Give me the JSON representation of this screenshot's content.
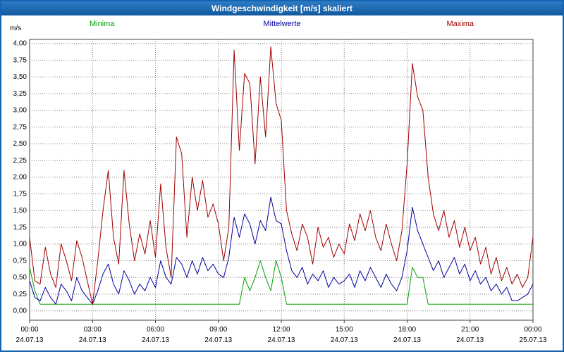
{
  "window": {
    "title": "Windgeschwindigkeit [m/s] skaliert"
  },
  "colors": {
    "window_border": "#1464b4",
    "titlebar_top": "#2e7cc4",
    "titlebar_bottom": "#11599e",
    "grid": "#787878",
    "axis": "#404040",
    "minima": "#00a000",
    "mittelwerte": "#0000a0",
    "maxima": "#a00000"
  },
  "chart_data": {
    "type": "line",
    "title": "Windgeschwindigkeit [m/s] skaliert",
    "ylabel": "m/s",
    "xlabel": "",
    "ylim": [
      0,
      4
    ],
    "ytick_step": 0.25,
    "y_tick_labels": [
      "4,00",
      "3,75",
      "3,50",
      "3,25",
      "3,00",
      "2,75",
      "2,50",
      "2,25",
      "2,00",
      "1,75",
      "1,50",
      "1,25",
      "1,00",
      "0,75",
      "0,50",
      "0,25",
      "0,00"
    ],
    "x_hours_range": [
      0,
      24
    ],
    "x_tick_hours": [
      0,
      3,
      6,
      9,
      12,
      15,
      18,
      21,
      24
    ],
    "x_tick_times": [
      "00:00",
      "03:00",
      "06:00",
      "09:00",
      "12:00",
      "15:00",
      "18:00",
      "21:00",
      "00:00"
    ],
    "x_tick_dates": [
      "24.07.13",
      "24.07.13",
      "24.07.13",
      "24.07.13",
      "24.07.13",
      "24.07.13",
      "24.07.13",
      "24.07.13",
      "25.07.13"
    ],
    "grid": true,
    "legend_position": "top",
    "sample_interval_minutes": 15,
    "series": [
      {
        "name": "Minima",
        "color": "#00a000",
        "values": [
          0.65,
          0.3,
          0.1,
          0.1,
          0.1,
          0.1,
          0.1,
          0.1,
          0.1,
          0.1,
          0.1,
          0.1,
          0.1,
          0.1,
          0.1,
          0.1,
          0.1,
          0.1,
          0.1,
          0.1,
          0.1,
          0.1,
          0.1,
          0.1,
          0.1,
          0.1,
          0.1,
          0.1,
          0.1,
          0.1,
          0.1,
          0.1,
          0.1,
          0.1,
          0.1,
          0.1,
          0.1,
          0.1,
          0.1,
          0.1,
          0.1,
          0.5,
          0.3,
          0.5,
          0.75,
          0.5,
          0.3,
          0.75,
          0.5,
          0.1,
          0.1,
          0.1,
          0.1,
          0.1,
          0.1,
          0.1,
          0.1,
          0.1,
          0.1,
          0.1,
          0.1,
          0.1,
          0.1,
          0.1,
          0.1,
          0.1,
          0.1,
          0.1,
          0.1,
          0.1,
          0.1,
          0.1,
          0.1,
          0.65,
          0.5,
          0.5,
          0.1,
          0.1,
          0.1,
          0.1,
          0.1,
          0.1,
          0.1,
          0.1,
          0.1,
          0.1,
          0.1,
          0.1,
          0.1,
          0.1,
          0.1,
          0.1,
          0.1,
          0.1,
          0.1,
          0.1,
          0.1
        ]
      },
      {
        "name": "Mittelwerte",
        "color": "#0000a0",
        "values": [
          0.45,
          0.2,
          0.15,
          0.35,
          0.2,
          0.1,
          0.4,
          0.3,
          0.15,
          0.5,
          0.3,
          0.2,
          0.1,
          0.3,
          0.55,
          0.7,
          0.4,
          0.25,
          0.6,
          0.45,
          0.25,
          0.4,
          0.3,
          0.5,
          0.35,
          0.75,
          0.5,
          0.4,
          0.8,
          0.7,
          0.5,
          0.75,
          0.55,
          0.8,
          0.6,
          0.7,
          0.55,
          0.5,
          0.8,
          1.4,
          1.1,
          1.45,
          1.3,
          1.0,
          1.35,
          1.2,
          1.7,
          1.35,
          1.3,
          0.9,
          0.6,
          0.5,
          0.65,
          0.4,
          0.55,
          0.45,
          0.6,
          0.35,
          0.5,
          0.4,
          0.45,
          0.55,
          0.35,
          0.6,
          0.45,
          0.65,
          0.5,
          0.35,
          0.55,
          0.4,
          0.3,
          0.5,
          0.9,
          1.55,
          1.2,
          1.0,
          0.8,
          0.6,
          0.75,
          0.5,
          0.65,
          0.8,
          0.55,
          0.7,
          0.45,
          0.6,
          0.4,
          0.5,
          0.3,
          0.4,
          0.25,
          0.35,
          0.15,
          0.15,
          0.2,
          0.25,
          0.4
        ]
      },
      {
        "name": "Maxima",
        "color": "#a00000",
        "values": [
          1.1,
          0.45,
          0.4,
          0.95,
          0.55,
          0.35,
          1.0,
          0.75,
          0.45,
          1.05,
          0.8,
          0.45,
          0.1,
          0.75,
          1.5,
          2.1,
          1.1,
          0.7,
          2.1,
          1.3,
          0.75,
          1.15,
          0.85,
          1.35,
          0.8,
          1.9,
          0.95,
          0.5,
          2.6,
          2.35,
          1.1,
          2.0,
          1.5,
          1.95,
          1.4,
          1.6,
          1.3,
          0.75,
          1.25,
          3.9,
          2.4,
          3.55,
          3.4,
          2.2,
          3.5,
          2.6,
          3.95,
          3.1,
          2.85,
          1.5,
          1.15,
          0.9,
          1.3,
          1.1,
          0.7,
          1.25,
          0.95,
          1.1,
          0.8,
          1.0,
          0.85,
          1.3,
          1.05,
          1.45,
          1.2,
          1.5,
          1.1,
          0.9,
          1.3,
          1.0,
          0.75,
          1.2,
          2.2,
          3.7,
          3.2,
          3.0,
          2.0,
          1.45,
          1.2,
          1.5,
          1.1,
          1.35,
          0.95,
          1.25,
          0.9,
          1.1,
          0.7,
          0.95,
          0.55,
          0.8,
          0.45,
          0.65,
          0.4,
          0.55,
          0.35,
          0.5,
          1.1
        ]
      }
    ]
  }
}
